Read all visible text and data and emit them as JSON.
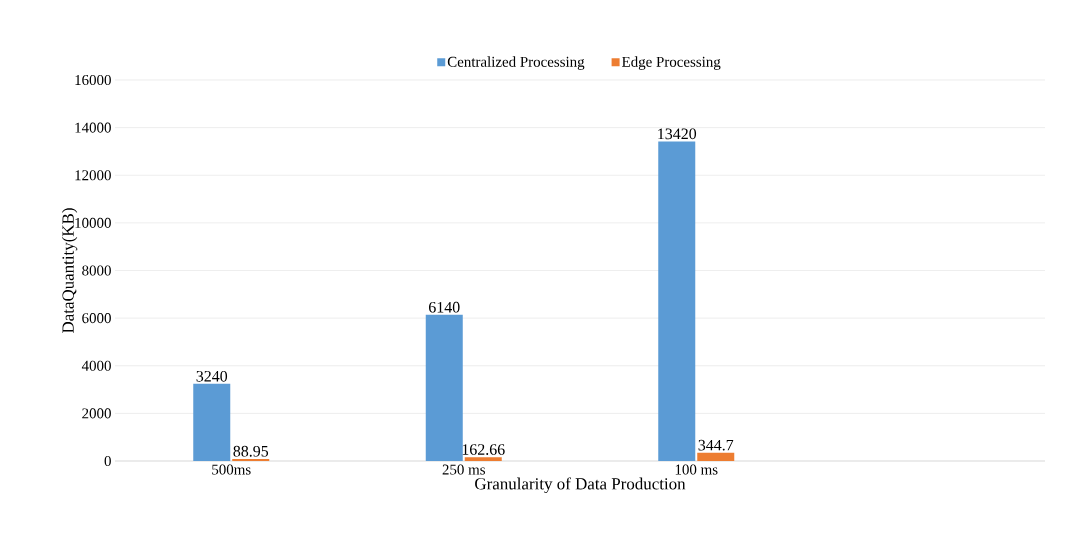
{
  "chart_data": {
    "type": "bar",
    "xlabel": "Granularity of Data Production",
    "ylabel": "DataQuantity(KB)",
    "categories": [
      "500ms",
      "250 ms",
      "100 ms",
      null
    ],
    "series": [
      {
        "name": "Centralized  Processing",
        "color": "#5b9bd5",
        "values": [
          3240,
          6140,
          13420,
          null
        ]
      },
      {
        "name": "Edge Processing",
        "color": "#ed7d31",
        "values": [
          88.95,
          162.66,
          344.7,
          null
        ]
      }
    ],
    "ylim": [
      0,
      16000
    ],
    "yticks": [
      0,
      2000,
      4000,
      6000,
      8000,
      10000,
      12000,
      14000,
      16000
    ],
    "grid": "y",
    "legend": "top",
    "data_labels": true
  }
}
